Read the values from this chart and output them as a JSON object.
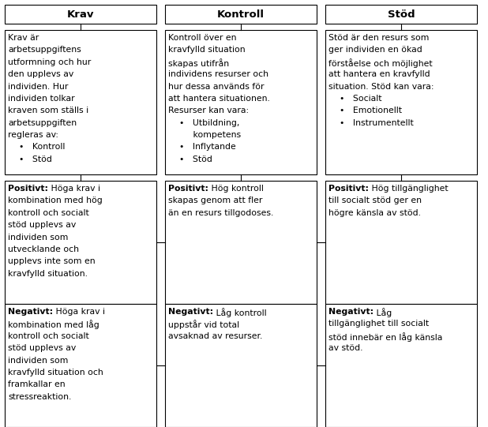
{
  "title_krav": "Krav",
  "title_kontroll": "Kontroll",
  "title_stod": "Stöd",
  "cell_krav_top_lines": [
    {
      "text": "Krav är",
      "bold": false
    },
    {
      "text": "arbetsuppgiftens",
      "bold": false
    },
    {
      "text": "utformning och hur",
      "bold": false
    },
    {
      "text": "den upplevs av",
      "bold": false
    },
    {
      "text": "individen. Hur",
      "bold": false
    },
    {
      "text": "individen tolkar",
      "bold": false
    },
    {
      "text": "kraven som ställs i",
      "bold": false
    },
    {
      "text": "arbetsuppgiften",
      "bold": false
    },
    {
      "text": "regleras av:",
      "bold": false
    },
    {
      "text": "    •   Kontroll",
      "bold": false
    },
    {
      "text": "    •   Stöd",
      "bold": false
    }
  ],
  "cell_kontroll_top_lines": [
    {
      "text": "Kontroll över en",
      "bold": false
    },
    {
      "text": "kravfylld situation",
      "bold": false
    },
    {
      "text": "skapas utifrån",
      "bold": false
    },
    {
      "text": "individens resurser och",
      "bold": false
    },
    {
      "text": "hur dessa används för",
      "bold": false
    },
    {
      "text": "att hantera situationen.",
      "bold": false
    },
    {
      "text": "Resurser kan vara:",
      "bold": false
    },
    {
      "text": "    •   Utbildning,",
      "bold": false
    },
    {
      "text": "         kompetens",
      "bold": false
    },
    {
      "text": "    •   Inflytande",
      "bold": false
    },
    {
      "text": "    •   Stöd",
      "bold": false
    }
  ],
  "cell_stod_top_lines": [
    {
      "text": "Stöd är den resurs som",
      "bold": false
    },
    {
      "text": "ger individen en ökad",
      "bold": false
    },
    {
      "text": "förståelse och möjlighet",
      "bold": false
    },
    {
      "text": "att hantera en kravfylld",
      "bold": false
    },
    {
      "text": "situation. Stöd kan vara:",
      "bold": false
    },
    {
      "text": "    •   Socialt",
      "bold": false
    },
    {
      "text": "    •   Emotionellt",
      "bold": false
    },
    {
      "text": "    •   Instrumentellt",
      "bold": false
    }
  ],
  "cell_krav_pos_lines": [
    {
      "bold_part": "Positivt:",
      "rest": " Höga krav i"
    },
    {
      "bold_part": "",
      "rest": "kombination med hög"
    },
    {
      "bold_part": "",
      "rest": "kontroll och socialt"
    },
    {
      "bold_part": "",
      "rest": "stöd upplevs av"
    },
    {
      "bold_part": "",
      "rest": "individen som"
    },
    {
      "bold_part": "",
      "rest": "utvecklande och"
    },
    {
      "bold_part": "",
      "rest": "upplevs inte som en"
    },
    {
      "bold_part": "",
      "rest": "kravfylld situation."
    }
  ],
  "cell_krav_neg_lines": [
    {
      "bold_part": "Negativt:",
      "rest": " Höga krav i"
    },
    {
      "bold_part": "",
      "rest": "kombination med låg"
    },
    {
      "bold_part": "",
      "rest": "kontroll och socialt"
    },
    {
      "bold_part": "",
      "rest": "stöd upplevs av"
    },
    {
      "bold_part": "",
      "rest": "individen som"
    },
    {
      "bold_part": "",
      "rest": "kravfylld situation och"
    },
    {
      "bold_part": "",
      "rest": "framkallar en"
    },
    {
      "bold_part": "",
      "rest": "stressreaktion."
    }
  ],
  "cell_kontroll_pos_lines": [
    {
      "bold_part": "Positivt:",
      "rest": " Hög kontroll"
    },
    {
      "bold_part": "",
      "rest": "skapas genom att fler"
    },
    {
      "bold_part": "",
      "rest": "än en resurs tillgodoses."
    }
  ],
  "cell_kontroll_neg_lines": [
    {
      "bold_part": "Negativt:",
      "rest": " Låg kontroll"
    },
    {
      "bold_part": "",
      "rest": "uppstår vid total"
    },
    {
      "bold_part": "",
      "rest": "avsaknad av resurser."
    }
  ],
  "cell_stod_pos_lines": [
    {
      "bold_part": "Positivt:",
      "rest": " Hög tillgänglighet"
    },
    {
      "bold_part": "",
      "rest": "till socialt stöd ger en"
    },
    {
      "bold_part": "",
      "rest": "högre känsla av stöd."
    }
  ],
  "cell_stod_neg_lines": [
    {
      "bold_part": "Negativt:",
      "rest": " Låg"
    },
    {
      "bold_part": "",
      "rest": "tillgänglighet till socialt"
    },
    {
      "bold_part": "",
      "rest": "stöd innebär en låg känsla"
    },
    {
      "bold_part": "",
      "rest": "av stöd."
    }
  ],
  "bg_color": "#ffffff",
  "border_color": "#000000",
  "text_color": "#000000",
  "font_size": 7.8,
  "title_font_size": 9.5
}
